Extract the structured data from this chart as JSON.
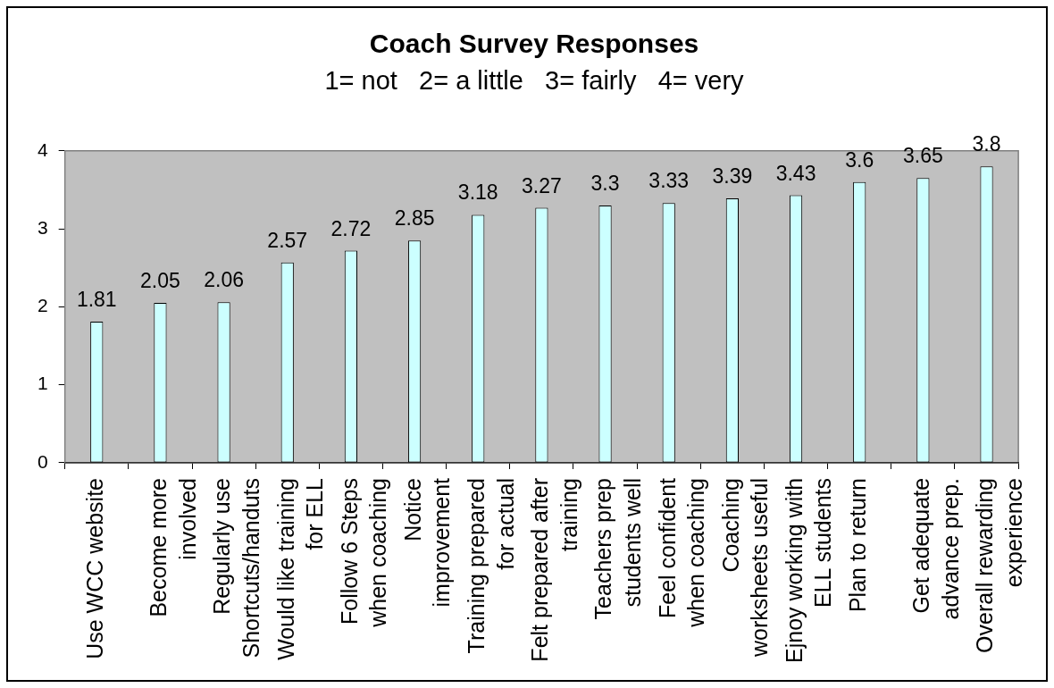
{
  "chart_data": {
    "type": "bar",
    "title": "Coach Survey Responses",
    "subtitle": "1= not   2= a little   3= fairly   4= very",
    "categories": [
      "Use WCC website",
      "Become more involved",
      "Regularly use Shortcuts/handuts",
      "Would like training for ELL",
      "Follow 6 Steps when coaching",
      "Notice improvement",
      "Training prepared for actual",
      "Felt prepared after training",
      "Teachers prep students well",
      "Feel confident when coaching",
      "Coaching worksheets useful",
      "Ejnoy working with ELL students",
      "Plan to return",
      "Get adequate advance prep.",
      "Overall rewarding experience"
    ],
    "values": [
      1.81,
      2.05,
      2.06,
      2.57,
      2.72,
      2.85,
      3.18,
      3.27,
      3.3,
      3.33,
      3.39,
      3.43,
      3.6,
      3.65,
      3.8
    ],
    "color": "#ccffff",
    "ylim": [
      0,
      4
    ],
    "yticks": [
      0,
      1,
      2,
      3,
      4
    ],
    "data_labels": true
  }
}
